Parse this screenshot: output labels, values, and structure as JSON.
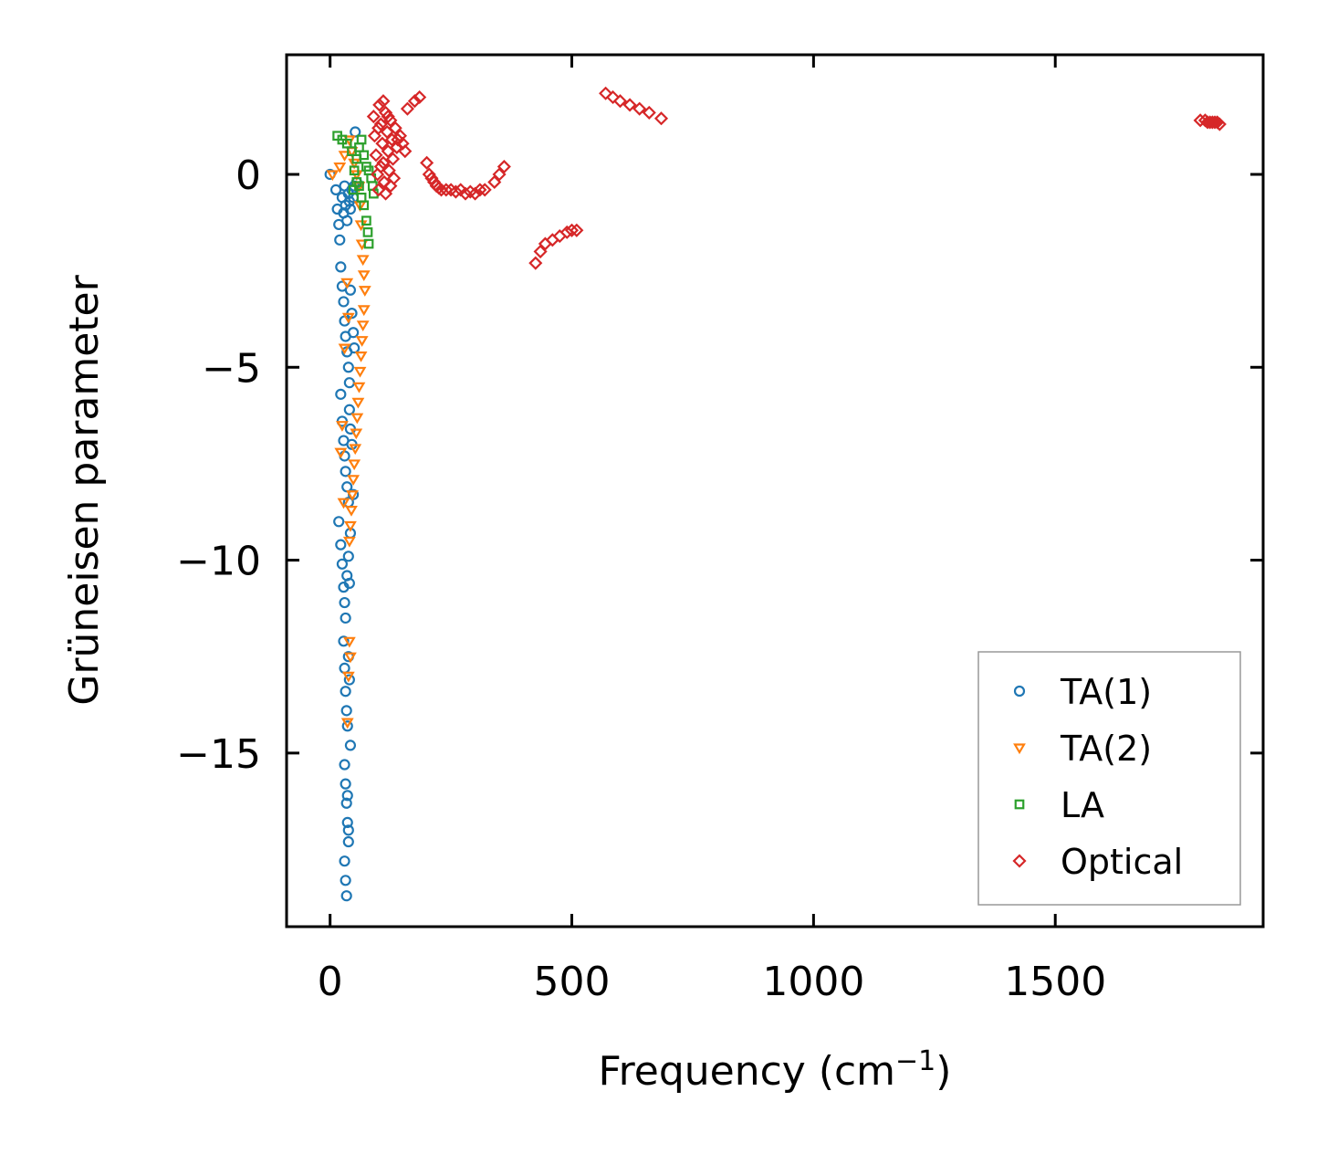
{
  "chart_data": {
    "type": "scatter",
    "title": "",
    "xlabel": "Frequency (cm",
    "xlabel_sup": "−1",
    "xlabel_close": ")",
    "ylabel": "Grüneisen parameter",
    "xlim": [
      -90,
      1930
    ],
    "ylim": [
      -19.5,
      3.1
    ],
    "xticks": [
      0,
      500,
      1000,
      1500
    ],
    "xtick_labels": [
      "0",
      "500",
      "1000",
      "1500"
    ],
    "yticks": [
      0,
      -5,
      -10,
      -15
    ],
    "ytick_labels": [
      "0",
      "−5",
      "−10",
      "−15"
    ],
    "legend_position": "lower-right",
    "series": [
      {
        "name": "TA(1)",
        "marker": "circle",
        "color": "#1f77b4",
        "points": [
          [
            0,
            0
          ],
          [
            12,
            -0.4
          ],
          [
            15,
            -0.9
          ],
          [
            18,
            -1.3
          ],
          [
            20,
            -1.7
          ],
          [
            22,
            -2.4
          ],
          [
            25,
            -0.6
          ],
          [
            28,
            -1.0
          ],
          [
            30,
            -0.3
          ],
          [
            32,
            -0.8
          ],
          [
            35,
            -1.2
          ],
          [
            38,
            -0.5
          ],
          [
            40,
            -0.7
          ],
          [
            42,
            -0.9
          ],
          [
            45,
            -0.4
          ],
          [
            48,
            -0.6
          ],
          [
            50,
            -0.3
          ],
          [
            52,
            1.1
          ],
          [
            55,
            -0.2
          ],
          [
            25,
            -2.9
          ],
          [
            28,
            -3.3
          ],
          [
            30,
            -3.8
          ],
          [
            32,
            -4.2
          ],
          [
            35,
            -4.6
          ],
          [
            38,
            -5.0
          ],
          [
            40,
            -5.4
          ],
          [
            42,
            -3.0
          ],
          [
            45,
            -3.6
          ],
          [
            48,
            -4.1
          ],
          [
            50,
            -4.5
          ],
          [
            22,
            -5.7
          ],
          [
            25,
            -6.4
          ],
          [
            28,
            -6.9
          ],
          [
            30,
            -7.3
          ],
          [
            32,
            -7.7
          ],
          [
            35,
            -8.1
          ],
          [
            38,
            -8.5
          ],
          [
            40,
            -6.1
          ],
          [
            42,
            -6.6
          ],
          [
            45,
            -7.0
          ],
          [
            48,
            -8.3
          ],
          [
            18,
            -9.0
          ],
          [
            22,
            -9.6
          ],
          [
            25,
            -10.1
          ],
          [
            28,
            -10.7
          ],
          [
            30,
            -11.1
          ],
          [
            32,
            -11.5
          ],
          [
            35,
            -10.4
          ],
          [
            38,
            -9.9
          ],
          [
            40,
            -10.6
          ],
          [
            42,
            -9.3
          ],
          [
            28,
            -12.1
          ],
          [
            30,
            -12.8
          ],
          [
            32,
            -13.4
          ],
          [
            34,
            -13.9
          ],
          [
            36,
            -14.3
          ],
          [
            38,
            -12.5
          ],
          [
            40,
            -13.1
          ],
          [
            42,
            -14.8
          ],
          [
            30,
            -15.3
          ],
          [
            32,
            -15.8
          ],
          [
            34,
            -16.3
          ],
          [
            36,
            -16.8
          ],
          [
            38,
            -17.3
          ],
          [
            30,
            -17.8
          ],
          [
            32,
            -18.3
          ],
          [
            34,
            -18.7
          ],
          [
            36,
            -16.1
          ],
          [
            38,
            -17.0
          ]
        ]
      },
      {
        "name": "TA(2)",
        "marker": "triangle-down",
        "color": "#ff7f0e",
        "points": [
          [
            5,
            0
          ],
          [
            20,
            0.2
          ],
          [
            30,
            0.5
          ],
          [
            40,
            0.9
          ],
          [
            45,
            0.6
          ],
          [
            50,
            0.3
          ],
          [
            55,
            0.0
          ],
          [
            60,
            -0.3
          ],
          [
            62,
            -0.8
          ],
          [
            64,
            -1.3
          ],
          [
            66,
            -1.8
          ],
          [
            68,
            -2.2
          ],
          [
            70,
            -2.6
          ],
          [
            72,
            -3.0
          ],
          [
            70,
            -3.5
          ],
          [
            68,
            -3.9
          ],
          [
            66,
            -4.3
          ],
          [
            64,
            -4.7
          ],
          [
            62,
            -5.1
          ],
          [
            60,
            -5.5
          ],
          [
            58,
            -5.9
          ],
          [
            56,
            -6.3
          ],
          [
            54,
            -6.7
          ],
          [
            52,
            -7.1
          ],
          [
            50,
            -7.5
          ],
          [
            48,
            -7.9
          ],
          [
            46,
            -8.3
          ],
          [
            44,
            -8.7
          ],
          [
            42,
            -9.1
          ],
          [
            40,
            -9.5
          ],
          [
            35,
            -2.8
          ],
          [
            38,
            -3.7
          ],
          [
            30,
            -4.5
          ],
          [
            25,
            -6.5
          ],
          [
            22,
            -7.2
          ],
          [
            28,
            -8.5
          ],
          [
            40,
            -12.1
          ],
          [
            42,
            -12.5
          ],
          [
            38,
            -13.0
          ],
          [
            36,
            -14.2
          ]
        ]
      },
      {
        "name": "LA",
        "marker": "square",
        "color": "#2ca02c",
        "points": [
          [
            15,
            1.0
          ],
          [
            25,
            0.9
          ],
          [
            35,
            0.8
          ],
          [
            45,
            0.6
          ],
          [
            55,
            0.4
          ],
          [
            60,
            0.7
          ],
          [
            65,
            0.9
          ],
          [
            70,
            0.5
          ],
          [
            75,
            0.2
          ],
          [
            80,
            0.1
          ],
          [
            85,
            -0.1
          ],
          [
            88,
            -0.3
          ],
          [
            90,
            -0.5
          ],
          [
            70,
            -0.8
          ],
          [
            75,
            -1.2
          ],
          [
            78,
            -1.5
          ],
          [
            80,
            -1.8
          ],
          [
            65,
            -0.6
          ],
          [
            60,
            -0.3
          ],
          [
            55,
            -0.2
          ],
          [
            50,
            0.1
          ],
          [
            48,
            -0.4
          ]
        ]
      },
      {
        "name": "Optical",
        "marker": "diamond",
        "color": "#d62728",
        "points": [
          [
            90,
            1.5
          ],
          [
            92,
            1.0
          ],
          [
            95,
            0.5
          ],
          [
            98,
            0.0
          ],
          [
            100,
            -0.4
          ],
          [
            102,
            1.8
          ],
          [
            105,
            1.3
          ],
          [
            108,
            0.8
          ],
          [
            110,
            0.3
          ],
          [
            112,
            -0.2
          ],
          [
            115,
            1.6
          ],
          [
            118,
            1.1
          ],
          [
            120,
            0.6
          ],
          [
            122,
            0.1
          ],
          [
            125,
            1.4
          ],
          [
            128,
            0.9
          ],
          [
            130,
            0.4
          ],
          [
            132,
            -0.1
          ],
          [
            135,
            1.2
          ],
          [
            138,
            0.7
          ],
          [
            140,
            0.9
          ],
          [
            145,
            1.0
          ],
          [
            150,
            0.8
          ],
          [
            155,
            0.6
          ],
          [
            100,
            1.2
          ],
          [
            105,
            0.2
          ],
          [
            110,
            1.9
          ],
          [
            115,
            -0.5
          ],
          [
            120,
            1.5
          ],
          [
            125,
            -0.3
          ],
          [
            160,
            1.7
          ],
          [
            175,
            1.9
          ],
          [
            185,
            2.0
          ],
          [
            200,
            0.3
          ],
          [
            205,
            0.0
          ],
          [
            210,
            -0.1
          ],
          [
            215,
            -0.2
          ],
          [
            220,
            -0.3
          ],
          [
            225,
            -0.35
          ],
          [
            230,
            -0.4
          ],
          [
            240,
            -0.4
          ],
          [
            250,
            -0.4
          ],
          [
            260,
            -0.45
          ],
          [
            270,
            -0.4
          ],
          [
            280,
            -0.5
          ],
          [
            290,
            -0.45
          ],
          [
            300,
            -0.5
          ],
          [
            310,
            -0.4
          ],
          [
            320,
            -0.4
          ],
          [
            340,
            -0.2
          ],
          [
            350,
            0.0
          ],
          [
            360,
            0.2
          ],
          [
            425,
            -2.3
          ],
          [
            435,
            -2.0
          ],
          [
            445,
            -1.8
          ],
          [
            460,
            -1.7
          ],
          [
            475,
            -1.6
          ],
          [
            490,
            -1.5
          ],
          [
            500,
            -1.45
          ],
          [
            510,
            -1.45
          ],
          [
            570,
            2.1
          ],
          [
            585,
            2.0
          ],
          [
            600,
            1.9
          ],
          [
            620,
            1.8
          ],
          [
            640,
            1.7
          ],
          [
            660,
            1.6
          ],
          [
            685,
            1.45
          ],
          [
            1800,
            1.4
          ],
          [
            1810,
            1.4
          ],
          [
            1815,
            1.35
          ],
          [
            1820,
            1.35
          ],
          [
            1825,
            1.35
          ],
          [
            1830,
            1.35
          ],
          [
            1835,
            1.35
          ],
          [
            1840,
            1.3
          ]
        ]
      }
    ]
  }
}
